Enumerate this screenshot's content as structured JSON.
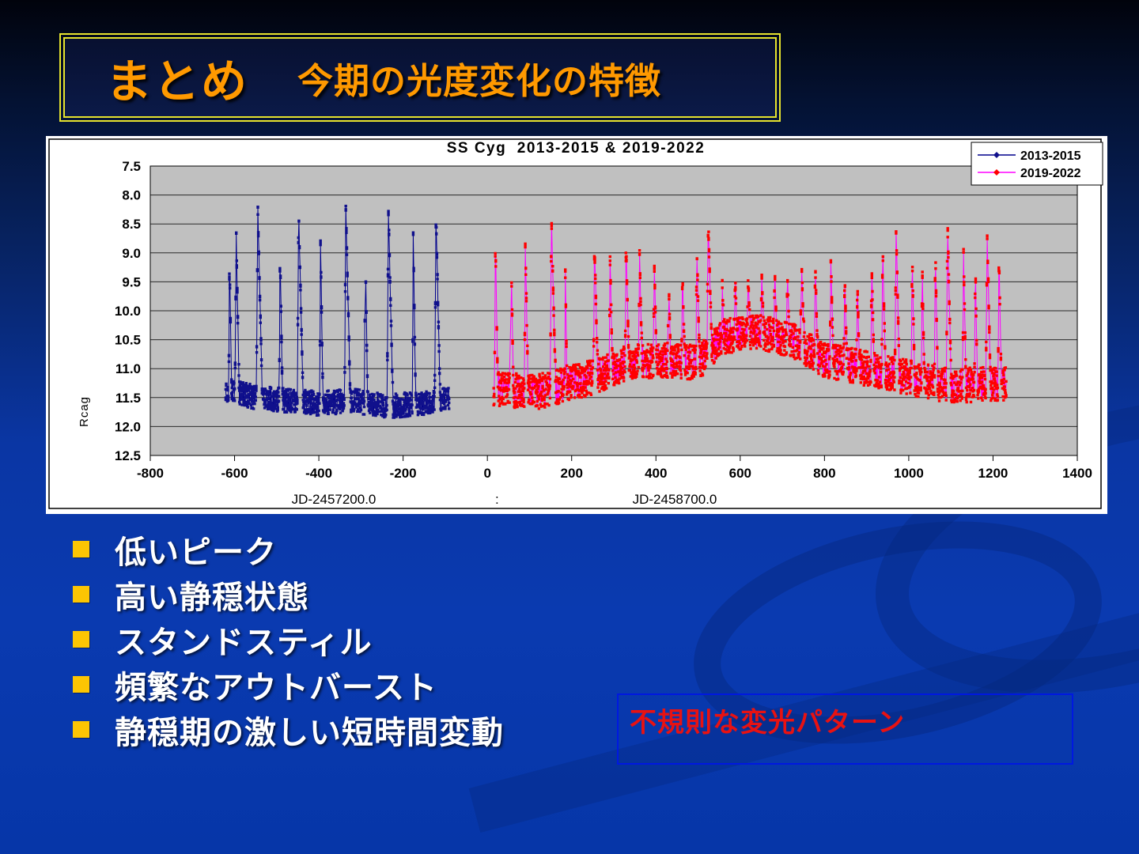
{
  "slide": {
    "title": {
      "main": "まとめ",
      "sub": "今期の光度変化の特徴"
    },
    "bullets": {
      "items": [
        "低いピーク",
        "高い静穏状態",
        "スタンドスティル",
        "頻繁なアウトバースト",
        "静穏期の激しい短時間変動"
      ]
    },
    "callout": {
      "text": "不規則な変光パターン"
    },
    "colors": {
      "title_text": "#ff9900",
      "title_border": "#e6e32e",
      "bullet_square": "#fcc503",
      "bullet_text": "#ffffff",
      "callout_border": "#0018e0",
      "callout_text": "#e81212",
      "background_top": "#01030c",
      "background_bottom": "#0636a8"
    }
  },
  "chart_data": {
    "type": "scatter",
    "title": "SS Cyg  2013-2015 & 2019-2022",
    "ylabel": "Rcag",
    "xlabels": {
      "left": "JD-2457200.0",
      "separator": ":",
      "right": "JD-2458700.0"
    },
    "xlim": [
      -800,
      1400
    ],
    "ylim": [
      7.5,
      12.5
    ],
    "y_axis_inverted": true,
    "xticks": [
      -800,
      -600,
      -400,
      -200,
      0,
      200,
      400,
      600,
      800,
      1000,
      1200,
      1400
    ],
    "yticks": [
      7.5,
      8.0,
      8.5,
      9.0,
      9.5,
      10.0,
      10.5,
      11.0,
      11.5,
      12.0,
      12.5
    ],
    "plot_bg": "#c0c0c0",
    "grid_color": "#2a2a2a",
    "frame_color": "#000000",
    "legend_position": "top-right",
    "sample_step_days": 1.25,
    "series": [
      {
        "name": "2013-2015",
        "line_color": "#00008c",
        "marker_color": "#10108c",
        "x_range": [
          -621,
          -90
        ],
        "noise_quiet": 0.21,
        "noise_outburst": 0.07,
        "quiescence": [
          [
            -621,
            11.35
          ],
          [
            -550,
            11.5
          ],
          [
            -480,
            11.55
          ],
          [
            -400,
            11.6
          ],
          [
            -320,
            11.55
          ],
          [
            -240,
            11.65
          ],
          [
            -160,
            11.6
          ],
          [
            -90,
            11.5
          ]
        ],
        "outbursts": [
          [
            -612,
            9.15,
            2,
            5
          ],
          [
            -596,
            8.7,
            3,
            7
          ],
          [
            -545,
            8.2,
            3,
            11
          ],
          [
            -492,
            9.0,
            2,
            6
          ],
          [
            -448,
            8.25,
            3,
            11
          ],
          [
            -396,
            8.8,
            2,
            6
          ],
          [
            -336,
            8.2,
            3,
            11
          ],
          [
            -290,
            8.8,
            2,
            6
          ],
          [
            -235,
            8.2,
            3,
            11
          ],
          [
            -176,
            8.7,
            2,
            6
          ],
          [
            -122,
            8.3,
            3,
            10
          ]
        ]
      },
      {
        "name": "2019-2022",
        "line_color": "#ff00ff",
        "marker_color": "#ff0000",
        "x_range": [
          15,
          1232
        ],
        "noise_quiet": 0.3,
        "noise_outburst": 0.08,
        "quiescence": [
          [
            15,
            11.35
          ],
          [
            120,
            11.4
          ],
          [
            250,
            11.15
          ],
          [
            330,
            10.9
          ],
          [
            420,
            10.85
          ],
          [
            500,
            10.9
          ],
          [
            560,
            10.45
          ],
          [
            640,
            10.35
          ],
          [
            720,
            10.5
          ],
          [
            800,
            10.85
          ],
          [
            900,
            11.0
          ],
          [
            1000,
            11.15
          ],
          [
            1100,
            11.3
          ],
          [
            1232,
            11.25
          ]
        ],
        "outbursts": [
          [
            19,
            8.75,
            2,
            6
          ],
          [
            56,
            8.95,
            2,
            6
          ],
          [
            90,
            8.85,
            2,
            7
          ],
          [
            152,
            8.4,
            3,
            10
          ],
          [
            185,
            9.35,
            1,
            4
          ],
          [
            254,
            8.8,
            2,
            8
          ],
          [
            291,
            9.05,
            2,
            6
          ],
          [
            329,
            8.8,
            2,
            7
          ],
          [
            361,
            8.95,
            2,
            6
          ],
          [
            396,
            9.2,
            2,
            6
          ],
          [
            430,
            9.35,
            2,
            5
          ],
          [
            463,
            9.25,
            2,
            5
          ],
          [
            497,
            8.9,
            2,
            7
          ],
          [
            524,
            8.45,
            3,
            9
          ],
          [
            557,
            9.4,
            1,
            4
          ],
          [
            588,
            9.45,
            2,
            5
          ],
          [
            619,
            9.4,
            2,
            5
          ],
          [
            651,
            9.35,
            2,
            5
          ],
          [
            682,
            9.3,
            2,
            5
          ],
          [
            712,
            9.35,
            2,
            5
          ],
          [
            745,
            9.0,
            2,
            7
          ],
          [
            778,
            9.2,
            2,
            6
          ],
          [
            815,
            9.1,
            2,
            6
          ],
          [
            848,
            9.3,
            2,
            5
          ],
          [
            878,
            9.5,
            2,
            5
          ],
          [
            912,
            9.2,
            2,
            6
          ],
          [
            938,
            8.9,
            2,
            7
          ],
          [
            970,
            8.6,
            3,
            8
          ],
          [
            1008,
            9.0,
            2,
            6
          ],
          [
            1032,
            9.2,
            2,
            5
          ],
          [
            1063,
            8.9,
            2,
            6
          ],
          [
            1092,
            8.5,
            3,
            9
          ],
          [
            1130,
            9.0,
            2,
            6
          ],
          [
            1158,
            9.2,
            2,
            5
          ],
          [
            1186,
            8.6,
            3,
            8
          ],
          [
            1214,
            8.95,
            2,
            6
          ]
        ]
      }
    ]
  }
}
